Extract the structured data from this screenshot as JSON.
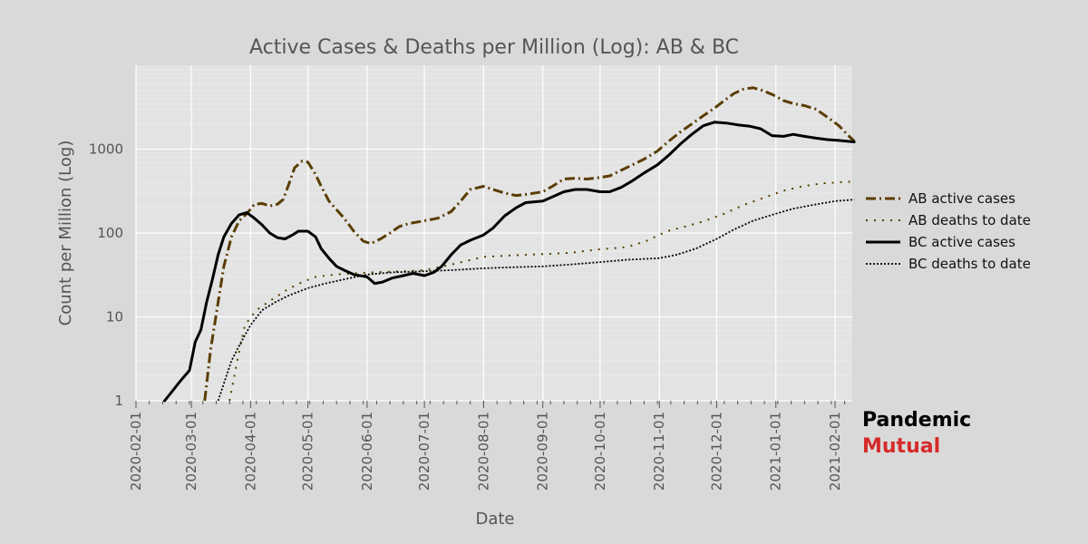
{
  "brand": {
    "line1": "Pandemic",
    "line2": "Mutual",
    "line2_color": "#d62a2a"
  },
  "chart_data": {
    "type": "line",
    "title": "Active Cases & Deaths per Million (Log): AB & BC",
    "xlabel": "Date",
    "ylabel": "Count per Million (Log)",
    "yscale": "log",
    "ylim": [
      1,
      10000
    ],
    "y_ticks": [
      1,
      10,
      100,
      1000
    ],
    "y_tick_labels": [
      "1",
      "10",
      "100",
      "1000"
    ],
    "x_start": "2020-02-01",
    "x_end": "2021-02-10",
    "x_ticks": [
      "2020-02-01",
      "2020-03-01",
      "2020-04-01",
      "2020-05-01",
      "2020-06-01",
      "2020-07-01",
      "2020-08-01",
      "2020-09-01",
      "2020-10-01",
      "2020-11-01",
      "2020-12-01",
      "2021-01-01",
      "2021-02-01"
    ],
    "grid": true,
    "legend_position": "right",
    "series": [
      {
        "name": "AB active cases",
        "color": "#5a3d00",
        "style": "dashdot",
        "points": [
          [
            "2020-03-08",
            1
          ],
          [
            "2020-03-11",
            4
          ],
          [
            "2020-03-15",
            15
          ],
          [
            "2020-03-18",
            40
          ],
          [
            "2020-03-22",
            90
          ],
          [
            "2020-03-26",
            140
          ],
          [
            "2020-03-30",
            170
          ],
          [
            "2020-04-03",
            220
          ],
          [
            "2020-04-07",
            225
          ],
          [
            "2020-04-11",
            210
          ],
          [
            "2020-04-15",
            220
          ],
          [
            "2020-04-18",
            250
          ],
          [
            "2020-04-21",
            380
          ],
          [
            "2020-04-24",
            600
          ],
          [
            "2020-04-28",
            720
          ],
          [
            "2020-05-01",
            700
          ],
          [
            "2020-05-05",
            500
          ],
          [
            "2020-05-08",
            360
          ],
          [
            "2020-05-12",
            240
          ],
          [
            "2020-05-16",
            190
          ],
          [
            "2020-05-20",
            150
          ],
          [
            "2020-05-25",
            105
          ],
          [
            "2020-05-30",
            80
          ],
          [
            "2020-06-03",
            75
          ],
          [
            "2020-06-08",
            85
          ],
          [
            "2020-06-13",
            100
          ],
          [
            "2020-06-18",
            120
          ],
          [
            "2020-06-23",
            130
          ],
          [
            "2020-07-01",
            140
          ],
          [
            "2020-07-08",
            150
          ],
          [
            "2020-07-15",
            180
          ],
          [
            "2020-07-20",
            240
          ],
          [
            "2020-07-25",
            330
          ],
          [
            "2020-08-01",
            360
          ],
          [
            "2020-08-06",
            330
          ],
          [
            "2020-08-12",
            300
          ],
          [
            "2020-08-18",
            280
          ],
          [
            "2020-08-24",
            290
          ],
          [
            "2020-09-01",
            310
          ],
          [
            "2020-09-06",
            360
          ],
          [
            "2020-09-12",
            440
          ],
          [
            "2020-09-18",
            450
          ],
          [
            "2020-09-24",
            440
          ],
          [
            "2020-10-01",
            460
          ],
          [
            "2020-10-06",
            480
          ],
          [
            "2020-10-12",
            560
          ],
          [
            "2020-10-18",
            650
          ],
          [
            "2020-10-24",
            760
          ],
          [
            "2020-10-31",
            950
          ],
          [
            "2020-11-06",
            1250
          ],
          [
            "2020-11-12",
            1600
          ],
          [
            "2020-11-18",
            2000
          ],
          [
            "2020-11-24",
            2500
          ],
          [
            "2020-11-30",
            3100
          ],
          [
            "2020-12-05",
            3800
          ],
          [
            "2020-12-10",
            4600
          ],
          [
            "2020-12-15",
            5200
          ],
          [
            "2020-12-20",
            5400
          ],
          [
            "2020-12-25",
            5000
          ],
          [
            "2020-12-30",
            4500
          ],
          [
            "2021-01-05",
            3800
          ],
          [
            "2021-01-10",
            3500
          ],
          [
            "2021-01-16",
            3300
          ],
          [
            "2021-01-22",
            3000
          ],
          [
            "2021-01-28",
            2400
          ],
          [
            "2021-02-03",
            1900
          ],
          [
            "2021-02-08",
            1450
          ],
          [
            "2021-02-11",
            1250
          ]
        ]
      },
      {
        "name": "AB deaths to date",
        "color": "#5a3d00",
        "style": "sparse-dot",
        "points": [
          [
            "2020-03-21",
            1
          ],
          [
            "2020-03-25",
            3
          ],
          [
            "2020-03-29",
            8
          ],
          [
            "2020-04-04",
            12
          ],
          [
            "2020-04-12",
            16
          ],
          [
            "2020-04-20",
            21
          ],
          [
            "2020-04-28",
            26
          ],
          [
            "2020-05-05",
            30
          ],
          [
            "2020-05-15",
            32
          ],
          [
            "2020-05-25",
            33
          ],
          [
            "2020-06-05",
            34
          ],
          [
            "2020-06-20",
            35
          ],
          [
            "2020-07-01",
            36
          ],
          [
            "2020-07-15",
            42
          ],
          [
            "2020-08-01",
            52
          ],
          [
            "2020-08-15",
            54
          ],
          [
            "2020-09-01",
            56
          ],
          [
            "2020-09-15",
            58
          ],
          [
            "2020-10-01",
            64
          ],
          [
            "2020-10-15",
            68
          ],
          [
            "2020-10-25",
            80
          ],
          [
            "2020-11-05",
            105
          ],
          [
            "2020-11-15",
            120
          ],
          [
            "2020-11-25",
            140
          ],
          [
            "2020-12-05",
            170
          ],
          [
            "2020-12-15",
            215
          ],
          [
            "2020-12-25",
            260
          ],
          [
            "2021-01-05",
            320
          ],
          [
            "2021-01-15",
            360
          ],
          [
            "2021-01-25",
            390
          ],
          [
            "2021-02-05",
            405
          ],
          [
            "2021-02-11",
            410
          ]
        ]
      },
      {
        "name": "BC active cases",
        "color": "#000000",
        "style": "solid",
        "points": [
          [
            "2020-02-16",
            1
          ],
          [
            "2020-02-20",
            1.3
          ],
          [
            "2020-02-24",
            1.7
          ],
          [
            "2020-02-29",
            2.3
          ],
          [
            "2020-03-03",
            5
          ],
          [
            "2020-03-06",
            7
          ],
          [
            "2020-03-09",
            15
          ],
          [
            "2020-03-12",
            28
          ],
          [
            "2020-03-15",
            55
          ],
          [
            "2020-03-18",
            90
          ],
          [
            "2020-03-22",
            130
          ],
          [
            "2020-03-26",
            165
          ],
          [
            "2020-03-30",
            175
          ],
          [
            "2020-04-03",
            150
          ],
          [
            "2020-04-07",
            125
          ],
          [
            "2020-04-11",
            100
          ],
          [
            "2020-04-15",
            88
          ],
          [
            "2020-04-19",
            85
          ],
          [
            "2020-04-23",
            95
          ],
          [
            "2020-04-26",
            105
          ],
          [
            "2020-05-01",
            105
          ],
          [
            "2020-05-05",
            90
          ],
          [
            "2020-05-08",
            65
          ],
          [
            "2020-05-12",
            50
          ],
          [
            "2020-05-16",
            40
          ],
          [
            "2020-05-20",
            36
          ],
          [
            "2020-05-25",
            32
          ],
          [
            "2020-06-01",
            30
          ],
          [
            "2020-06-05",
            25
          ],
          [
            "2020-06-09",
            26
          ],
          [
            "2020-06-14",
            29
          ],
          [
            "2020-06-20",
            31
          ],
          [
            "2020-06-25",
            33
          ],
          [
            "2020-07-01",
            31
          ],
          [
            "2020-07-06",
            34
          ],
          [
            "2020-07-10",
            40
          ],
          [
            "2020-07-15",
            55
          ],
          [
            "2020-07-20",
            72
          ],
          [
            "2020-07-25",
            82
          ],
          [
            "2020-08-01",
            95
          ],
          [
            "2020-08-06",
            115
          ],
          [
            "2020-08-12",
            160
          ],
          [
            "2020-08-18",
            200
          ],
          [
            "2020-08-23",
            230
          ],
          [
            "2020-09-01",
            240
          ],
          [
            "2020-09-06",
            270
          ],
          [
            "2020-09-12",
            310
          ],
          [
            "2020-09-18",
            330
          ],
          [
            "2020-09-24",
            330
          ],
          [
            "2020-10-01",
            310
          ],
          [
            "2020-10-06",
            310
          ],
          [
            "2020-10-12",
            350
          ],
          [
            "2020-10-18",
            420
          ],
          [
            "2020-10-24",
            520
          ],
          [
            "2020-10-31",
            650
          ],
          [
            "2020-11-06",
            850
          ],
          [
            "2020-11-12",
            1150
          ],
          [
            "2020-11-18",
            1500
          ],
          [
            "2020-11-24",
            1900
          ],
          [
            "2020-11-30",
            2100
          ],
          [
            "2020-12-06",
            2050
          ],
          [
            "2020-12-12",
            1950
          ],
          [
            "2020-12-18",
            1880
          ],
          [
            "2020-12-24",
            1750
          ],
          [
            "2020-12-30",
            1450
          ],
          [
            "2021-01-05",
            1420
          ],
          [
            "2021-01-10",
            1500
          ],
          [
            "2021-01-16",
            1420
          ],
          [
            "2021-01-22",
            1350
          ],
          [
            "2021-01-28",
            1300
          ],
          [
            "2021-02-03",
            1270
          ],
          [
            "2021-02-11",
            1220
          ]
        ]
      },
      {
        "name": "BC deaths to date",
        "color": "#000000",
        "style": "dotted",
        "points": [
          [
            "2020-03-15",
            1
          ],
          [
            "2020-03-18",
            1.6
          ],
          [
            "2020-03-22",
            3
          ],
          [
            "2020-03-27",
            5
          ],
          [
            "2020-04-01",
            8
          ],
          [
            "2020-04-07",
            12
          ],
          [
            "2020-04-14",
            15
          ],
          [
            "2020-04-21",
            18
          ],
          [
            "2020-05-01",
            22
          ],
          [
            "2020-05-10",
            25
          ],
          [
            "2020-05-20",
            28
          ],
          [
            "2020-06-01",
            32
          ],
          [
            "2020-06-15",
            34
          ],
          [
            "2020-07-01",
            35
          ],
          [
            "2020-07-15",
            36
          ],
          [
            "2020-08-01",
            38
          ],
          [
            "2020-08-15",
            39
          ],
          [
            "2020-09-01",
            40
          ],
          [
            "2020-09-15",
            42
          ],
          [
            "2020-10-01",
            45
          ],
          [
            "2020-10-15",
            48
          ],
          [
            "2020-11-01",
            50
          ],
          [
            "2020-11-10",
            55
          ],
          [
            "2020-11-20",
            65
          ],
          [
            "2020-12-01",
            85
          ],
          [
            "2020-12-10",
            110
          ],
          [
            "2020-12-20",
            140
          ],
          [
            "2021-01-01",
            170
          ],
          [
            "2021-01-10",
            195
          ],
          [
            "2021-01-20",
            215
          ],
          [
            "2021-02-01",
            240
          ],
          [
            "2021-02-11",
            250
          ]
        ]
      }
    ]
  }
}
